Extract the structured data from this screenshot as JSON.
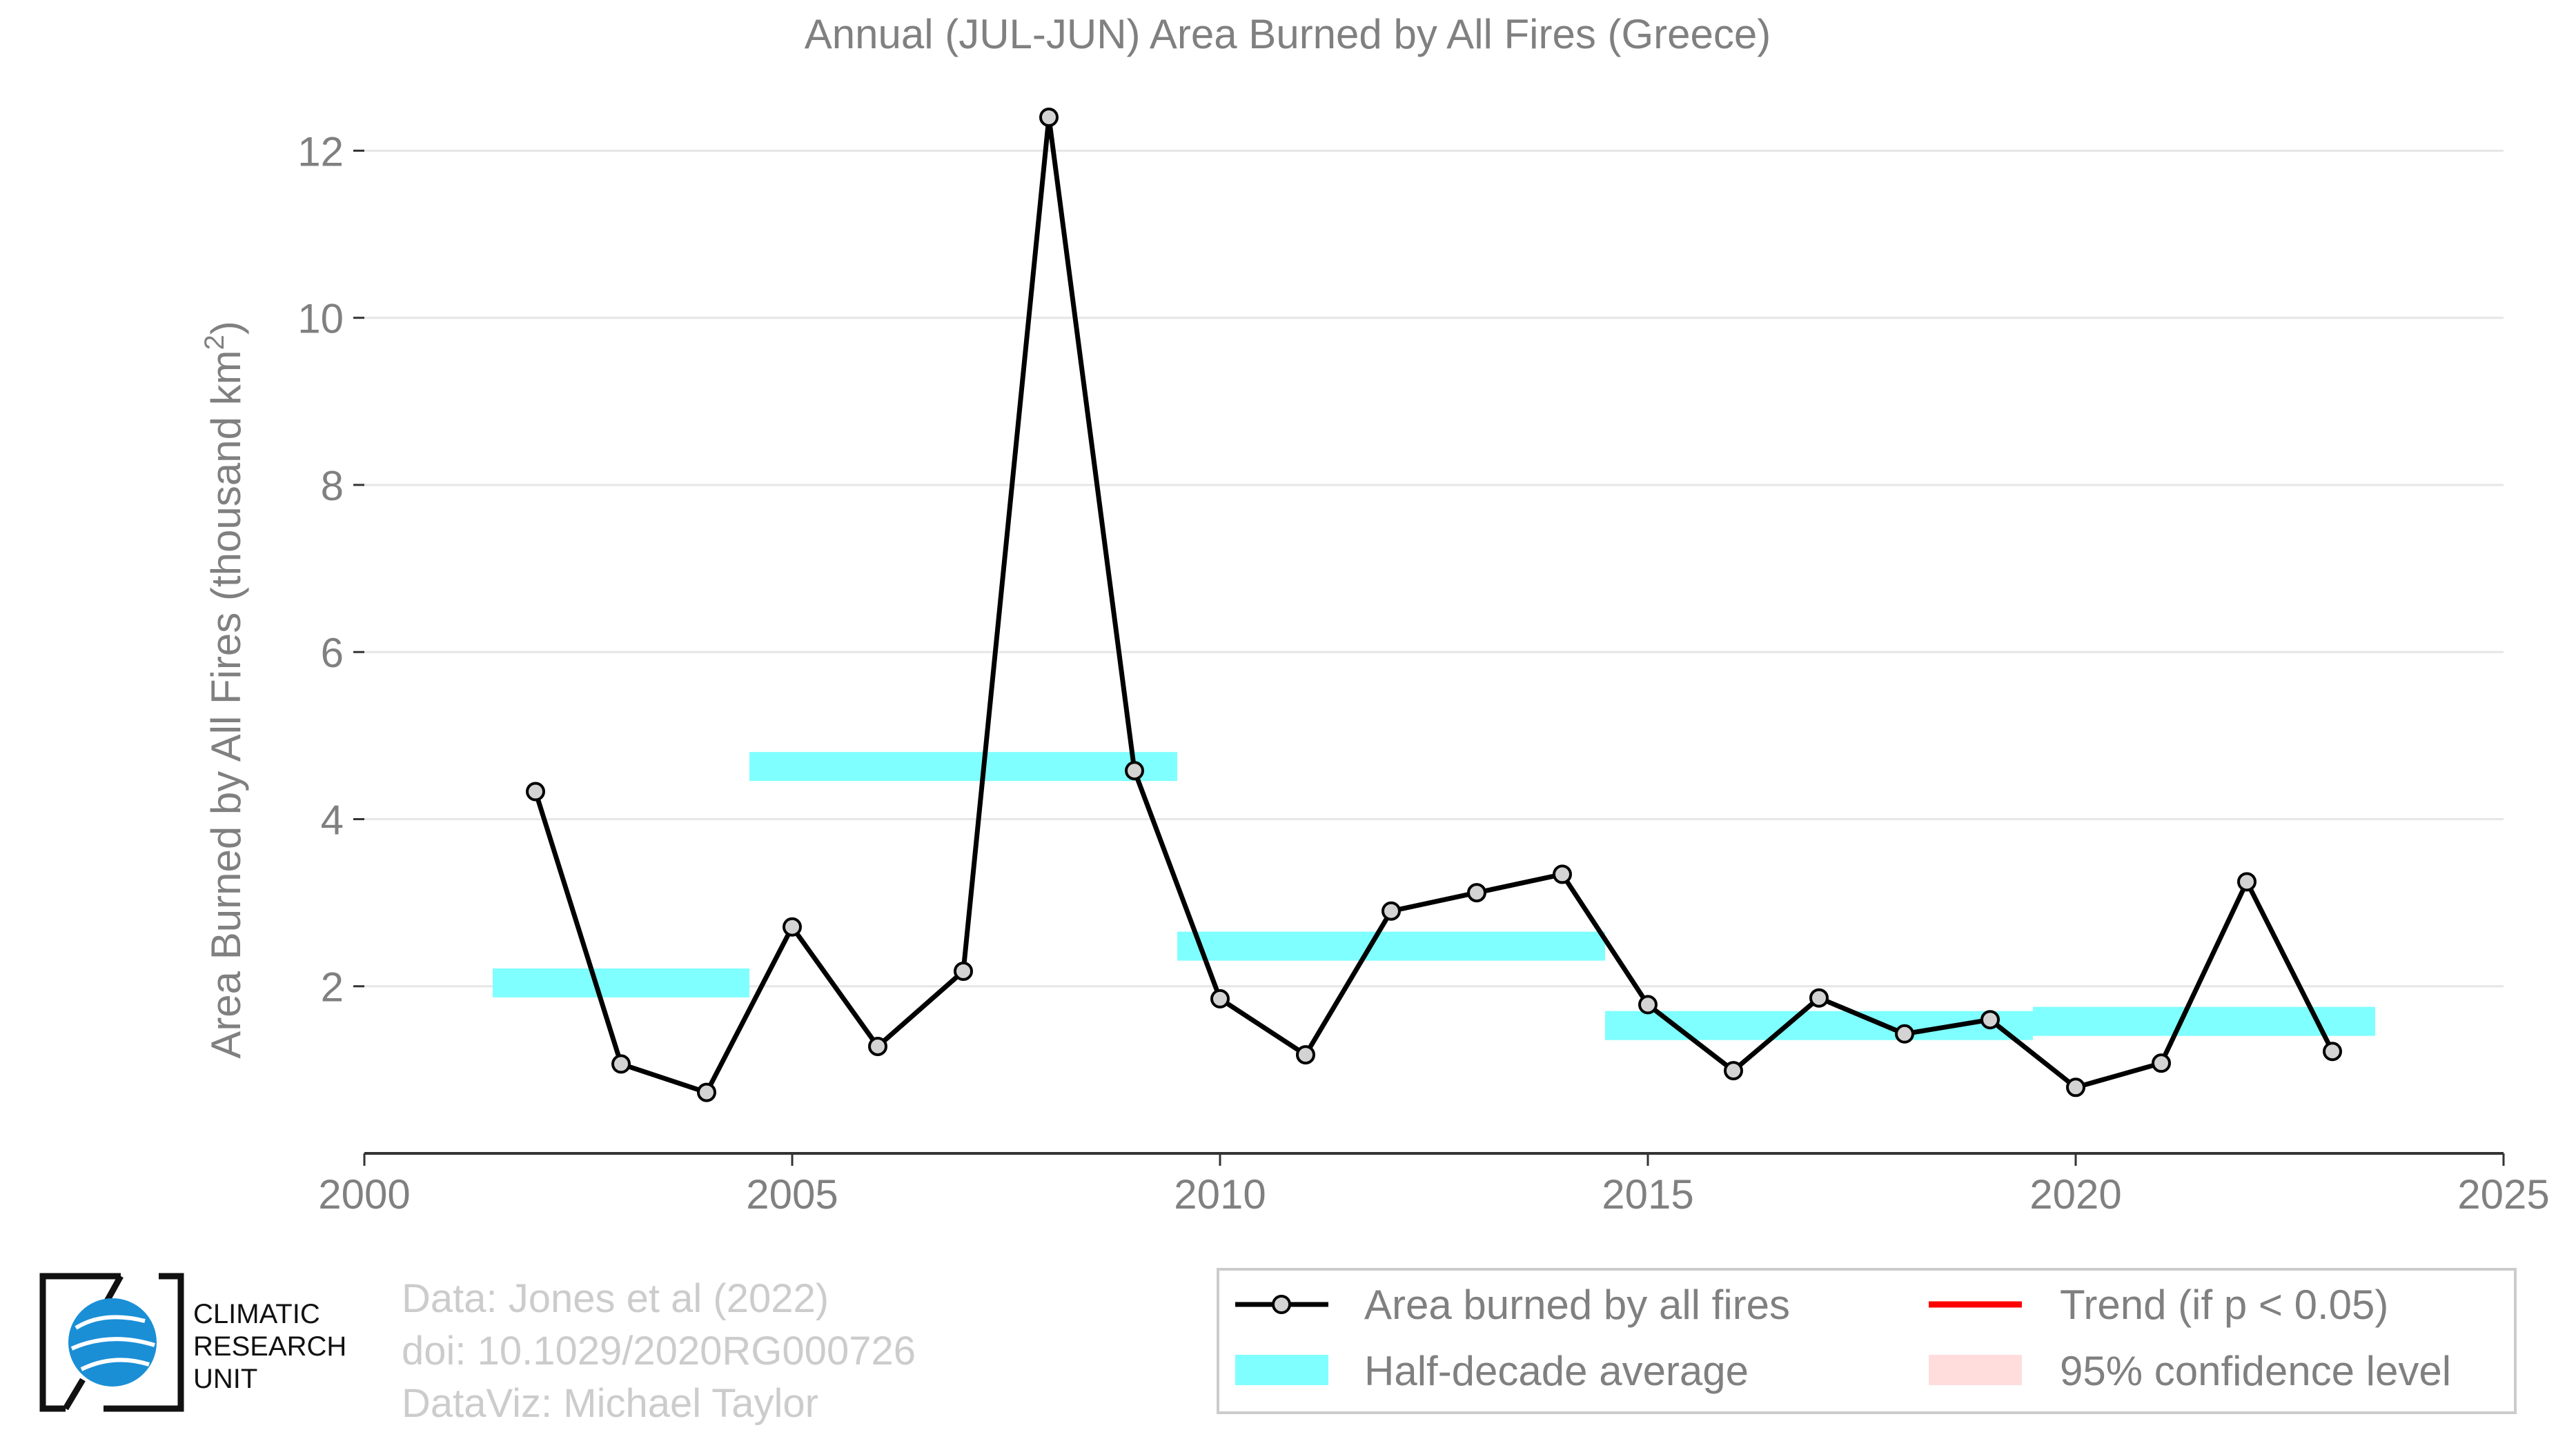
{
  "chart_data": {
    "type": "line",
    "title": "Annual (JUL-JUN) Area Burned by All Fires (Greece)",
    "ylabel": "Area Burned by All Fires (thousand km",
    "ylabel_superscript": "2",
    "ylabel_suffix": ")",
    "xlabel": "",
    "xlim": [
      2000,
      2025
    ],
    "ylim": [
      0,
      12.4
    ],
    "x_ticks": [
      2000,
      2005,
      2010,
      2015,
      2020,
      2025
    ],
    "y_ticks": [
      2,
      4,
      6,
      8,
      10,
      12
    ],
    "grid": "horizontal",
    "legend_position": "bottom-right",
    "series": [
      {
        "name": "Area burned by all fires",
        "color": "#000000",
        "marker_fill": "#d3d3d3",
        "x": [
          2002,
          2003,
          2004,
          2005,
          2006,
          2007,
          2008,
          2009,
          2010,
          2011,
          2012,
          2013,
          2014,
          2015,
          2016,
          2017,
          2018,
          2019,
          2020,
          2021,
          2022,
          2023
        ],
        "y": [
          4.33,
          1.07,
          0.73,
          2.71,
          1.28,
          2.18,
          12.4,
          4.58,
          1.85,
          1.18,
          2.9,
          3.12,
          3.34,
          1.78,
          0.99,
          1.86,
          1.43,
          1.6,
          0.79,
          1.08,
          3.25,
          1.22
        ]
      },
      {
        "name": "Half-decade average",
        "color": "#7fffff",
        "segments": [
          {
            "x_start": 2001.5,
            "x_end": 2004.5,
            "y": 2.04
          },
          {
            "x_start": 2004.5,
            "x_end": 2009.5,
            "y": 4.63
          },
          {
            "x_start": 2009.5,
            "x_end": 2014.5,
            "y": 2.48
          },
          {
            "x_start": 2014.5,
            "x_end": 2019.5,
            "y": 1.53
          },
          {
            "x_start": 2019.5,
            "x_end": 2023.5,
            "y": 1.58
          }
        ]
      }
    ],
    "legend": [
      {
        "label": "Area burned by all fires",
        "kind": "line-marker",
        "color": "#000000"
      },
      {
        "label": "Trend (if p < 0.05)",
        "kind": "line",
        "color": "#ff0000"
      },
      {
        "label": "Half-decade average",
        "kind": "patch",
        "color": "#7fffff"
      },
      {
        "label": "95% confidence level",
        "kind": "patch",
        "color": "#ffdddd"
      }
    ]
  },
  "footer": {
    "logo_lines": [
      "CLIMATIC",
      "RESEARCH",
      "UNIT"
    ],
    "credits": [
      "Data: Jones et al (2022)",
      "doi: 10.1029/2020RG000726",
      "DataViz: Michael Taylor"
    ]
  },
  "colors": {
    "text_gray": "#808080",
    "credit_gray": "#cccccc",
    "grid": "#e6e6e6",
    "logo_blue": "#1a8fd6"
  }
}
